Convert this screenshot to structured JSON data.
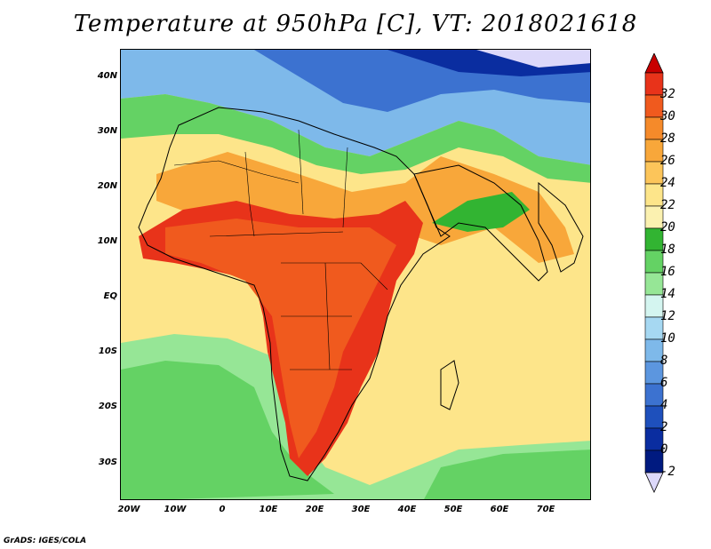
{
  "title": "Temperature at 950hPa [C], VT: 2018021618",
  "credit": "GrADS: IGES/COLA",
  "map": {
    "projection": "lat-lon",
    "lon_range": [
      -25,
      80
    ],
    "lat_range": [
      -37,
      45
    ],
    "lat_labels": [
      "40N",
      "30N",
      "20N",
      "10N",
      "EQ",
      "10S",
      "20S",
      "30S"
    ],
    "lon_labels": [
      "20W",
      "10W",
      "0",
      "10E",
      "20E",
      "30E",
      "40E",
      "50E",
      "60E",
      "70E"
    ]
  },
  "colorbar": {
    "labels": [
      "32",
      "30",
      "28",
      "26",
      "24",
      "22",
      "20",
      "18",
      "16",
      "14",
      "12",
      "10",
      "8",
      "6",
      "4",
      "2",
      "0",
      "-2"
    ],
    "colors": [
      "#e8331a",
      "#f05a1e",
      "#f58a2a",
      "#f8a73a",
      "#fcc55a",
      "#fde58a",
      "#fbf1b0",
      "#32b432",
      "#64d264",
      "#96e696",
      "#d4f5f0",
      "#a6d8f2",
      "#7eb9ea",
      "#5c96df",
      "#3c72d0",
      "#1e50bc",
      "#0a2da0",
      "#001a80"
    ],
    "top_color": "#c80000",
    "bottom_color": "#dcd8fa"
  }
}
